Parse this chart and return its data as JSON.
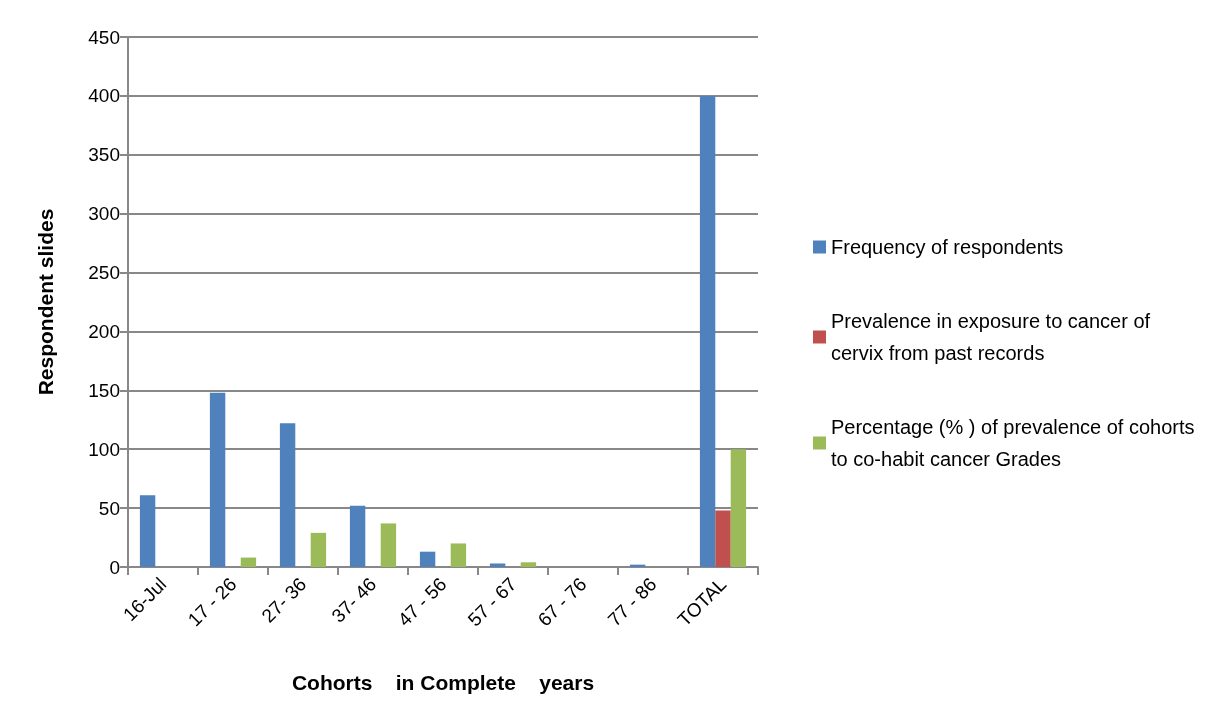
{
  "chart_data": {
    "type": "bar",
    "xlabel": "Cohorts    in Complete    years",
    "ylabel": "Respondent slides",
    "categories": [
      "16-Jul",
      "17 - 26",
      "27- 36",
      "37- 46",
      "47 - 56",
      "57 - 67",
      "67 - 76",
      "77 - 86",
      "TOTAL"
    ],
    "series": [
      {
        "name": "Frequency of respondents",
        "color": "#4f81bd",
        "values": [
          61,
          148,
          122,
          52,
          13,
          3,
          0,
          2,
          400
        ]
      },
      {
        "name": "Prevalence in exposure to cancer of cervix from past records",
        "color": "#c0504d",
        "values": [
          0,
          0,
          0,
          0,
          0,
          0,
          0,
          0,
          48
        ]
      },
      {
        "name": "Percentage (% ) of prevalence of cohorts to co-habit cancer Grades",
        "color": "#9bbb59",
        "values": [
          0,
          8,
          29,
          37,
          20,
          4,
          0,
          0,
          100
        ]
      }
    ],
    "ylim": [
      0,
      450
    ],
    "yticks": [
      0,
      50,
      100,
      150,
      200,
      250,
      300,
      350,
      400,
      450
    ],
    "grid": "y",
    "legend": "right"
  }
}
